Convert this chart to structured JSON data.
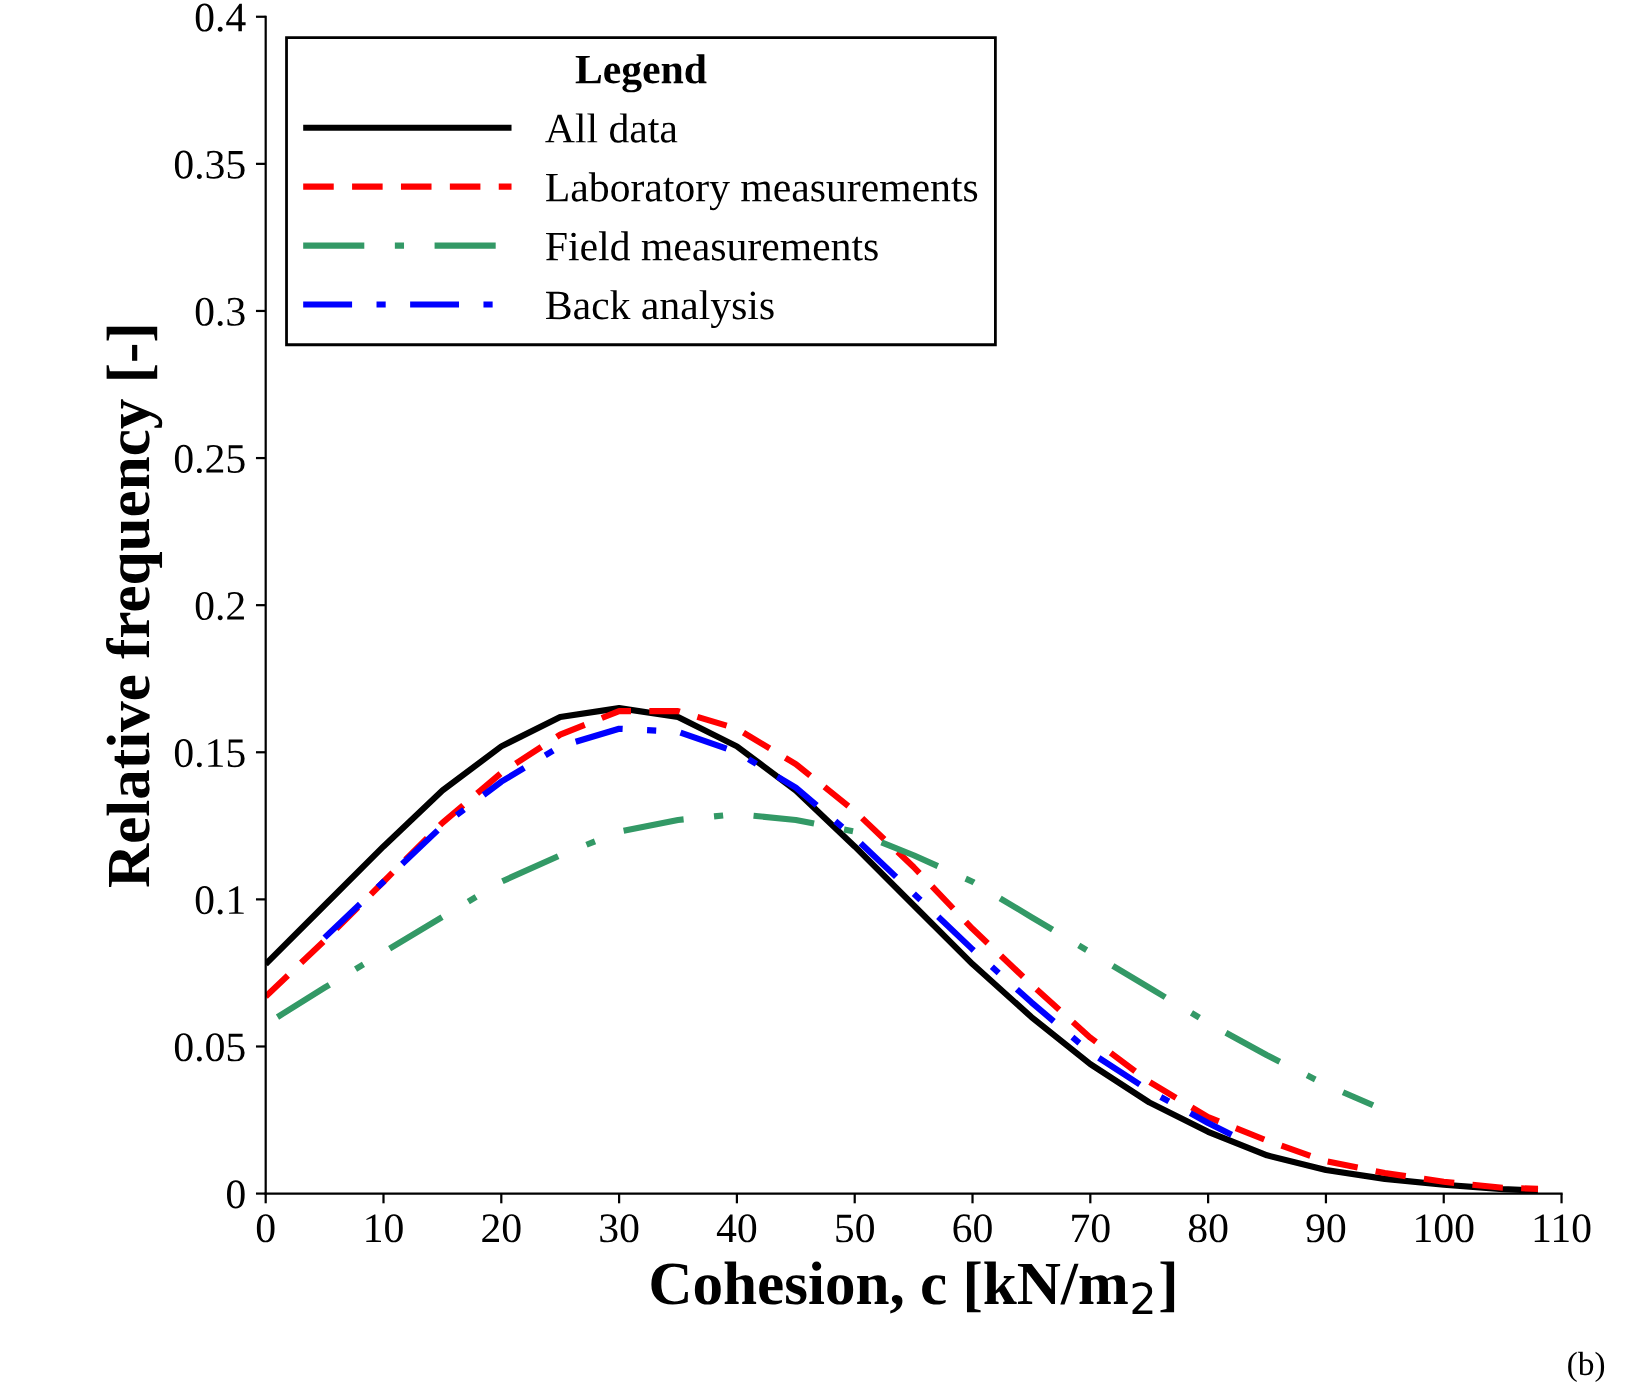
{
  "chart_data": {
    "type": "line",
    "xlabel": "Cohesion, c [kN/m$_{2}$]",
    "ylabel": "Relative frequency [-]",
    "legend_title": "Legend",
    "legend": "top left",
    "grid": false,
    "marker": "none",
    "xlim": [
      0,
      110
    ],
    "xticks": [
      0,
      10,
      20,
      30,
      40,
      50,
      60,
      70,
      80,
      90,
      100,
      110
    ],
    "ylim": [
      0,
      0.4
    ],
    "yticks": [
      0,
      0.05,
      0.1,
      0.15,
      0.2,
      0.25,
      0.3,
      0.35,
      0.4
    ],
    "annotations": [
      "(b)"
    ],
    "series": [
      {
        "name": "All data",
        "color": "#000000",
        "line_style": "solid",
        "x": [
          0,
          5,
          10,
          15,
          20,
          25,
          30,
          35,
          40,
          45,
          50,
          55,
          60,
          65,
          70,
          75,
          80,
          85,
          90,
          95,
          100,
          105,
          108
        ],
        "values": [
          0.078,
          0.098,
          0.118,
          0.137,
          0.152,
          0.162,
          0.165,
          0.162,
          0.152,
          0.137,
          0.118,
          0.098,
          0.078,
          0.06,
          0.044,
          0.031,
          0.021,
          0.013,
          0.008,
          0.005,
          0.003,
          0.0015,
          0.001
        ]
      },
      {
        "name": "Laboratory measurements",
        "color": "#ff0000",
        "line_style": "dashed",
        "x": [
          0,
          5,
          10,
          15,
          20,
          25,
          30,
          35,
          40,
          45,
          50,
          55,
          60,
          65,
          70,
          75,
          80,
          85,
          90,
          95,
          100,
          105,
          108
        ],
        "values": [
          0.067,
          0.086,
          0.106,
          0.126,
          0.143,
          0.156,
          0.164,
          0.164,
          0.158,
          0.146,
          0.13,
          0.111,
          0.09,
          0.071,
          0.053,
          0.038,
          0.026,
          0.018,
          0.011,
          0.007,
          0.004,
          0.002,
          0.0016
        ]
      },
      {
        "name": "Field measurements",
        "color": "#339966",
        "line_style": "dashdot",
        "x": [
          1,
          5,
          10,
          15,
          20,
          25,
          30,
          35,
          40,
          45,
          50,
          55,
          60,
          65,
          70,
          75,
          80,
          85,
          90,
          94
        ],
        "values": [
          0.06,
          0.07,
          0.082,
          0.094,
          0.106,
          0.115,
          0.123,
          0.127,
          0.129,
          0.127,
          0.123,
          0.115,
          0.106,
          0.094,
          0.082,
          0.07,
          0.058,
          0.047,
          0.037,
          0.03
        ]
      },
      {
        "name": "Back analysis",
        "color": "#0000ff",
        "line_style": "longdashdot",
        "x": [
          5,
          10,
          15,
          20,
          25,
          30,
          35,
          40,
          45,
          50,
          55,
          60,
          65,
          70,
          75,
          80,
          82
        ],
        "values": [
          0.087,
          0.106,
          0.125,
          0.14,
          0.152,
          0.158,
          0.157,
          0.15,
          0.138,
          0.121,
          0.102,
          0.083,
          0.065,
          0.048,
          0.035,
          0.024,
          0.02
        ]
      }
    ]
  }
}
